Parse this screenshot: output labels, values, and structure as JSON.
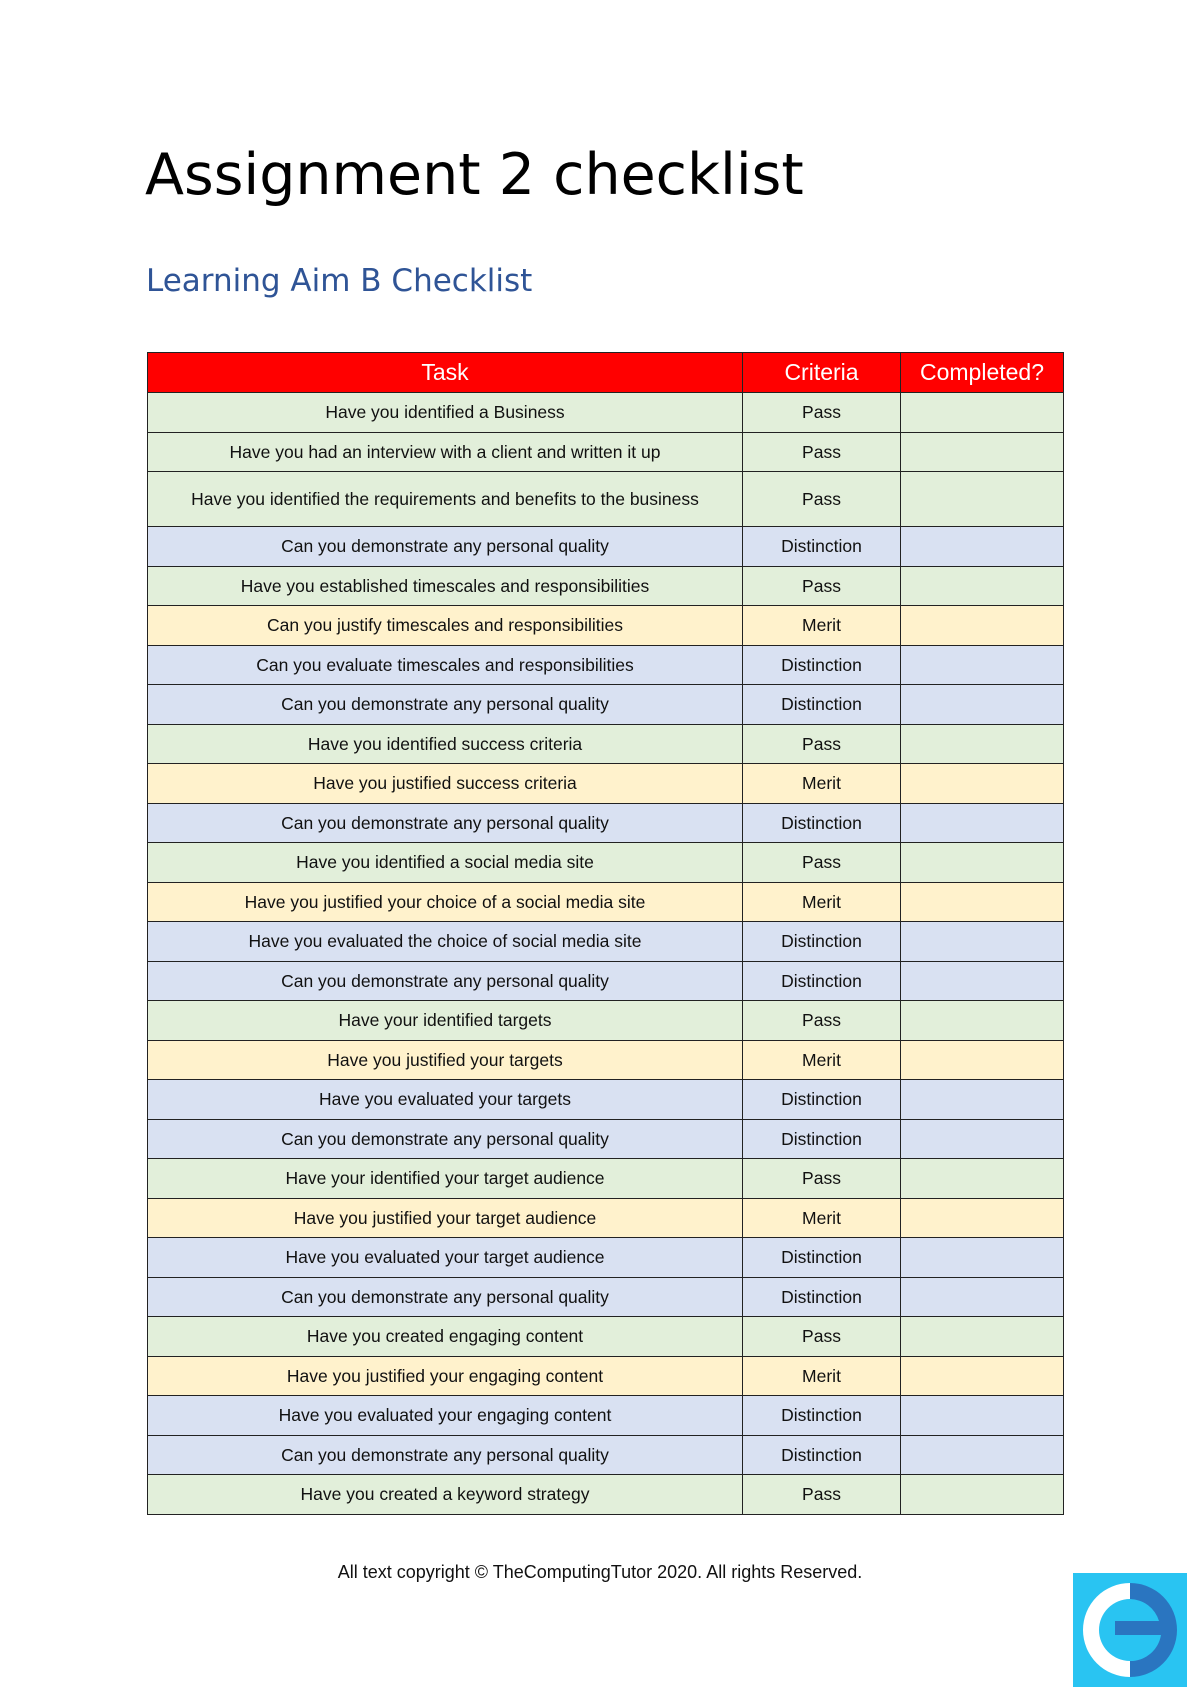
{
  "title": "Assignment 2 checklist",
  "subtitle": "Learning Aim B Checklist",
  "table": {
    "headers": [
      "Task",
      "Criteria",
      "Completed?"
    ],
    "rows": [
      {
        "task": "Have you identified a Business",
        "criteria": "Pass",
        "completed": ""
      },
      {
        "task": "Have you had an interview with a client and written it up",
        "criteria": "Pass",
        "completed": ""
      },
      {
        "task": "Have you identified the requirements and benefits to the business",
        "criteria": "Pass",
        "completed": ""
      },
      {
        "task": "Can you demonstrate any personal quality",
        "criteria": "Distinction",
        "completed": ""
      },
      {
        "task": "Have you established timescales and responsibilities",
        "criteria": "Pass",
        "completed": ""
      },
      {
        "task": "Can you justify timescales and responsibilities",
        "criteria": "Merit",
        "completed": ""
      },
      {
        "task": "Can you evaluate timescales and responsibilities",
        "criteria": "Distinction",
        "completed": ""
      },
      {
        "task": "Can you demonstrate any personal quality",
        "criteria": "Distinction",
        "completed": ""
      },
      {
        "task": "Have you identified success criteria",
        "criteria": "Pass",
        "completed": ""
      },
      {
        "task": "Have you justified success criteria",
        "criteria": "Merit",
        "completed": ""
      },
      {
        "task": "Can you demonstrate any personal quality",
        "criteria": "Distinction",
        "completed": ""
      },
      {
        "task": "Have you identified a social media site",
        "criteria": "Pass",
        "completed": ""
      },
      {
        "task": "Have you justified your choice of a social media site",
        "criteria": "Merit",
        "completed": ""
      },
      {
        "task": "Have you evaluated the choice of social media site",
        "criteria": "Distinction",
        "completed": ""
      },
      {
        "task": "Can you demonstrate any personal quality",
        "criteria": "Distinction",
        "completed": ""
      },
      {
        "task": "Have your identified targets",
        "criteria": "Pass",
        "completed": ""
      },
      {
        "task": "Have you justified your targets",
        "criteria": "Merit",
        "completed": ""
      },
      {
        "task": "Have you evaluated your targets",
        "criteria": "Distinction",
        "completed": ""
      },
      {
        "task": "Can you demonstrate any personal quality",
        "criteria": "Distinction",
        "completed": ""
      },
      {
        "task": "Have your identified your target audience",
        "criteria": "Pass",
        "completed": ""
      },
      {
        "task": "Have you justified your target audience",
        "criteria": "Merit",
        "completed": ""
      },
      {
        "task": "Have you evaluated your target audience",
        "criteria": "Distinction",
        "completed": ""
      },
      {
        "task": "Can you demonstrate any personal quality",
        "criteria": "Distinction",
        "completed": ""
      },
      {
        "task": "Have you created engaging content",
        "criteria": "Pass",
        "completed": ""
      },
      {
        "task": "Have you justified your engaging content",
        "criteria": "Merit",
        "completed": ""
      },
      {
        "task": "Have you evaluated your engaging content",
        "criteria": "Distinction",
        "completed": ""
      },
      {
        "task": "Can you demonstrate any personal quality",
        "criteria": "Distinction",
        "completed": ""
      },
      {
        "task": "Have you created a keyword strategy",
        "criteria": "Pass",
        "completed": ""
      }
    ]
  },
  "colors": {
    "header": "#ff0000",
    "pass": "#e2efda",
    "merit": "#fff2cc",
    "distinction": "#d9e1f2",
    "subtitle": "#2f5496",
    "logo_bg": "#29c4f2",
    "logo_dark": "#2a75c0"
  },
  "footer": "All text copyright © TheComputingTutor  2020. All rights Reserved.",
  "logo": {
    "icon": "thecomputingtutor-logo"
  }
}
